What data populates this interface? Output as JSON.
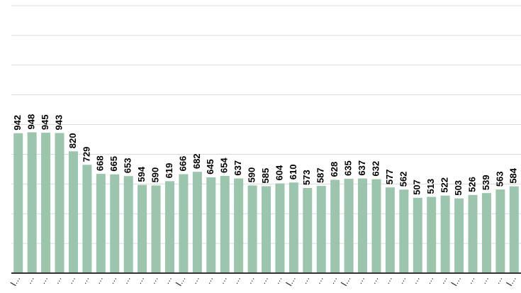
{
  "chart_data": {
    "type": "bar",
    "categories": [
      "I...",
      "...",
      "...",
      "...",
      "...",
      "...",
      "...",
      "...",
      "...",
      "...",
      "...",
      "...",
      "I...",
      "...",
      "...",
      "...",
      "...",
      "...",
      "...",
      "...",
      "I...",
      "...",
      "...",
      "...",
      "I...",
      "...",
      "...",
      "...",
      "...",
      "...",
      "...",
      "...",
      "I...",
      "...",
      "...",
      "...",
      "I..."
    ],
    "values": [
      942,
      948,
      945,
      943,
      820,
      729,
      668,
      665,
      653,
      594,
      590,
      619,
      666,
      682,
      645,
      654,
      637,
      590,
      585,
      604,
      610,
      573,
      587,
      628,
      635,
      637,
      632,
      577,
      562,
      507,
      513,
      522,
      503,
      526,
      539,
      563,
      584
    ],
    "color": "#9cc5ad",
    "ylim": [
      0,
      1800
    ],
    "yticks": [
      0,
      200,
      400,
      600,
      800,
      1000,
      1200,
      1400,
      1600,
      1800
    ],
    "grid": true
  }
}
